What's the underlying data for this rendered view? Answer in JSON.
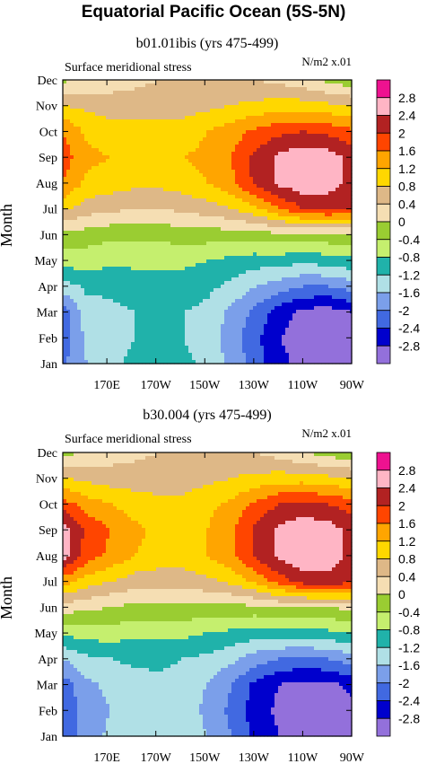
{
  "figure_title": "Equatorial Pacific Ocean (5S-5N)",
  "chart_data": [
    {
      "type": "heatmap",
      "title": "b01.01ibis (yrs 475-499)",
      "subtitle_left": "Surface meridional stress",
      "units_label": "N/m~S~2~N~ x.01",
      "ylabel": "Month",
      "xlabel": "",
      "x": [
        "170E",
        "170W",
        "150W",
        "130W",
        "110W",
        "90W"
      ],
      "x_ticks_lon": [
        170,
        190,
        210,
        230,
        250,
        270
      ],
      "xlim": [
        152,
        270
      ],
      "y": [
        "Jan",
        "Feb",
        "Mar",
        "Apr",
        "May",
        "Jun",
        "Jul",
        "Aug",
        "Sep",
        "Oct",
        "Nov",
        "Dec"
      ],
      "colorbar_levels": [
        "2.8",
        "2.4",
        "2",
        "1.6",
        "1.2",
        "0.8",
        "0.4",
        "0",
        "-0.4",
        "-0.8",
        "-1.2",
        "-1.6",
        "-2",
        "-2.4",
        "-2.8"
      ],
      "colorbar_colors": [
        "#ee1290",
        "#ffb5c5",
        "#b22222",
        "#ff4500",
        "#ffa500",
        "#ffd700",
        "#deb887",
        "#f5deb3",
        "#9acd32",
        "#c5ef6e",
        "#20b2aa",
        "#b0e0e6",
        "#7b9fea",
        "#4169e1",
        "#0000cd",
        "#9370db"
      ],
      "values": [
        [
          -2.1,
          -1.6,
          -1.3,
          -1.1,
          -1.0,
          -1.1,
          -1.3,
          -1.7,
          -2.2,
          -2.7,
          -2.9,
          -3.0,
          -3.0
        ],
        [
          -2.2,
          -1.5,
          -1.4,
          -1.2,
          -1.1,
          -1.2,
          -1.4,
          -1.8,
          -2.3,
          -2.8,
          -3.0,
          -3.1,
          -3.0
        ],
        [
          -2.2,
          -1.4,
          -1.3,
          -1.2,
          -1.1,
          -1.2,
          -1.3,
          -1.7,
          -2.1,
          -2.6,
          -2.9,
          -3.0,
          -2.8
        ],
        [
          -1.4,
          -1.1,
          -1.1,
          -1.0,
          -1.0,
          -1.0,
          -1.1,
          -1.3,
          -1.6,
          -1.8,
          -2.0,
          -2.0,
          -1.8
        ],
        [
          -0.6,
          -0.6,
          -0.7,
          -0.7,
          -0.7,
          -0.7,
          -0.8,
          -0.9,
          -1.0,
          -1.0,
          -1.1,
          -1.0,
          -0.9
        ],
        [
          -0.1,
          -0.2,
          -0.3,
          -0.3,
          -0.3,
          -0.2,
          -0.2,
          -0.2,
          -0.2,
          -0.1,
          -0.1,
          -0.1,
          -0.1
        ],
        [
          0.9,
          0.6,
          0.5,
          0.4,
          0.4,
          0.5,
          0.6,
          0.8,
          1.1,
          1.6,
          2.0,
          2.1,
          2.0
        ],
        [
          1.6,
          1.1,
          1.0,
          0.9,
          0.9,
          1.0,
          1.2,
          1.5,
          2.1,
          2.5,
          2.7,
          2.6,
          2.3
        ],
        [
          1.8,
          1.3,
          1.2,
          1.1,
          1.1,
          1.2,
          1.3,
          1.6,
          2.1,
          2.5,
          2.7,
          2.6,
          2.3
        ],
        [
          1.6,
          1.1,
          1.0,
          1.0,
          1.0,
          1.0,
          1.2,
          1.4,
          1.7,
          1.9,
          2.0,
          1.9,
          1.7
        ],
        [
          0.8,
          0.7,
          0.6,
          0.6,
          0.6,
          0.6,
          0.7,
          0.8,
          0.9,
          1.0,
          1.0,
          0.9,
          0.8
        ],
        [
          -0.1,
          0.1,
          0.2,
          0.3,
          0.4,
          0.4,
          0.4,
          0.5,
          0.4,
          0.3,
          0.1,
          -0.1,
          -0.3
        ]
      ]
    },
    {
      "type": "heatmap",
      "title": "b30.004 (yrs 475-499)",
      "subtitle_left": "Surface meridional stress",
      "units_label": "N/m~S~2~N~ x.01",
      "ylabel": "Month",
      "xlabel": "",
      "x": [
        "170E",
        "170W",
        "150W",
        "130W",
        "110W",
        "90W"
      ],
      "x_ticks_lon": [
        170,
        190,
        210,
        230,
        250,
        270
      ],
      "xlim": [
        152,
        270
      ],
      "y": [
        "Jan",
        "Feb",
        "Mar",
        "Apr",
        "May",
        "Jun",
        "Jul",
        "Aug",
        "Sep",
        "Oct",
        "Nov",
        "Dec"
      ],
      "colorbar_levels": [
        "2.8",
        "2.4",
        "2",
        "1.6",
        "1.2",
        "0.8",
        "0.4",
        "0",
        "-0.4",
        "-0.8",
        "-1.2",
        "-1.6",
        "-2",
        "-2.4",
        "-2.8"
      ],
      "colorbar_colors": [
        "#ee1290",
        "#ffb5c5",
        "#b22222",
        "#ff4500",
        "#ffa500",
        "#ffd700",
        "#deb887",
        "#f5deb3",
        "#9acd32",
        "#c5ef6e",
        "#20b2aa",
        "#b0e0e6",
        "#7b9fea",
        "#4169e1",
        "#0000cd",
        "#9370db"
      ],
      "values": [
        [
          -2.3,
          -1.8,
          -1.5,
          -1.3,
          -1.2,
          -1.3,
          -1.6,
          -2.0,
          -2.5,
          -2.8,
          -2.9,
          -2.9,
          -2.8
        ],
        [
          -2.4,
          -1.8,
          -1.6,
          -1.4,
          -1.3,
          -1.4,
          -1.7,
          -2.1,
          -2.6,
          -2.9,
          -3.0,
          -3.0,
          -2.9
        ],
        [
          -2.2,
          -1.7,
          -1.5,
          -1.4,
          -1.3,
          -1.4,
          -1.6,
          -2.0,
          -2.5,
          -2.8,
          -2.9,
          -2.9,
          -2.7
        ],
        [
          -1.6,
          -1.3,
          -1.2,
          -1.1,
          -1.1,
          -1.2,
          -1.3,
          -1.5,
          -1.8,
          -2.0,
          -2.1,
          -2.0,
          -1.8
        ],
        [
          -0.7,
          -0.6,
          -0.6,
          -0.7,
          -0.7,
          -0.7,
          -0.8,
          -0.9,
          -1.0,
          -1.0,
          -1.0,
          -0.9,
          -0.8
        ],
        [
          0.2,
          0.1,
          0.0,
          -0.1,
          -0.1,
          -0.1,
          -0.1,
          -0.1,
          -0.1,
          0.0,
          0.0,
          0.0,
          0.1
        ],
        [
          1.4,
          1.0,
          0.8,
          0.6,
          0.6,
          0.6,
          0.7,
          0.9,
          1.3,
          1.8,
          2.2,
          2.3,
          2.1
        ],
        [
          2.6,
          1.8,
          1.5,
          1.2,
          1.0,
          1.0,
          1.2,
          1.5,
          2.1,
          2.5,
          2.7,
          2.6,
          2.3
        ],
        [
          2.6,
          1.9,
          1.6,
          1.3,
          1.1,
          1.0,
          1.2,
          1.5,
          2.1,
          2.5,
          2.7,
          2.6,
          2.3
        ],
        [
          1.8,
          1.4,
          1.2,
          1.0,
          0.9,
          0.9,
          1.1,
          1.3,
          1.7,
          2.0,
          2.1,
          2.0,
          1.8
        ],
        [
          0.8,
          0.7,
          0.6,
          0.6,
          0.6,
          0.6,
          0.7,
          0.8,
          0.9,
          1.0,
          1.0,
          0.9,
          0.8
        ],
        [
          -0.1,
          0.0,
          0.2,
          0.3,
          0.4,
          0.5,
          0.5,
          0.5,
          0.4,
          0.2,
          0.0,
          -0.2,
          -0.3
        ]
      ]
    }
  ]
}
